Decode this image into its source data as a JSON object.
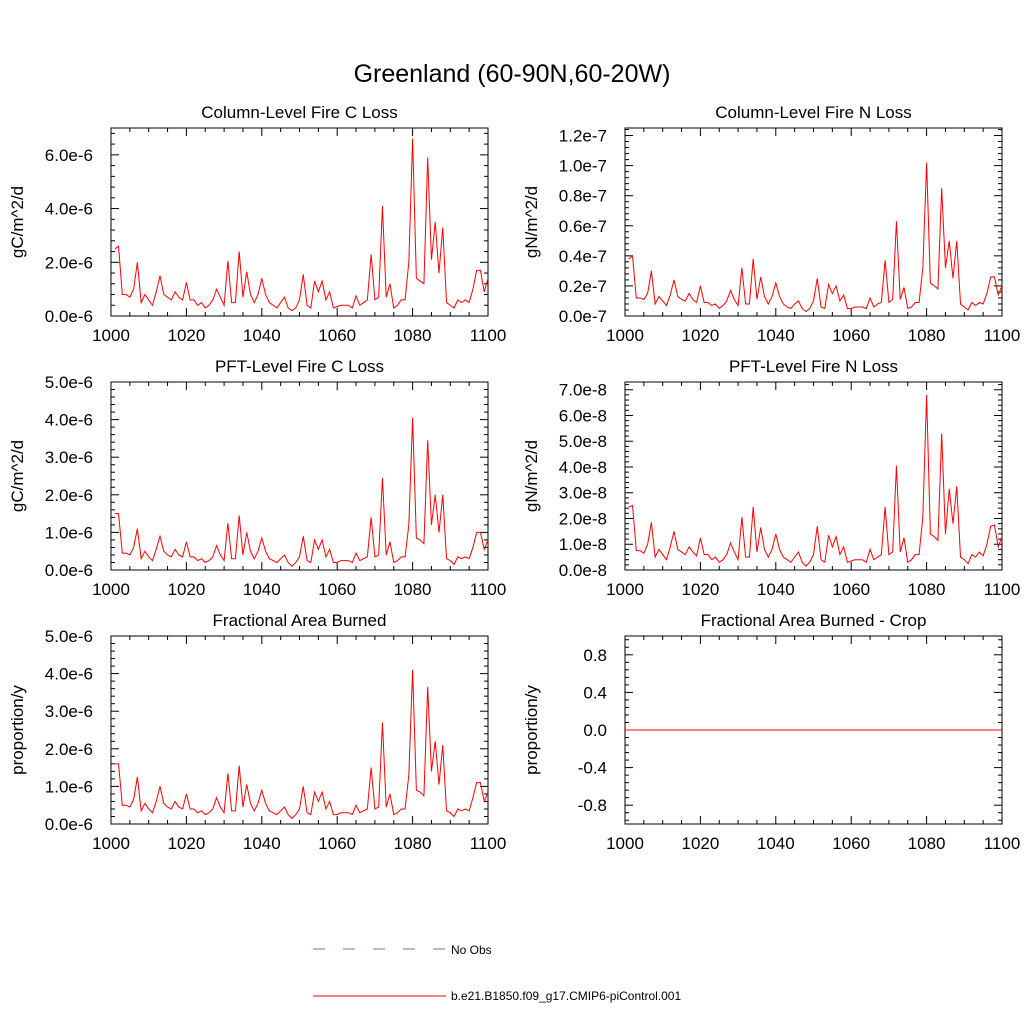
{
  "title": "Greenland (60-90N,60-20W)",
  "legend": [
    {
      "label": "No Obs",
      "style": "dashed",
      "color": "#6677bb"
    },
    {
      "label": "b.e21.B1850.f09_g17.CMIP6-piControl.001",
      "style": "solid",
      "color": "#ff0000"
    }
  ],
  "colors": {
    "series": "#ff0000",
    "axis": "#000000"
  },
  "chart_data": [
    {
      "type": "line",
      "title": "Column-Level Fire C Loss",
      "ylabel": "gC/m^2/d",
      "xlim": [
        1000,
        1100
      ],
      "ylim": [
        0,
        7e-06
      ],
      "xticks": [
        1000,
        1020,
        1040,
        1060,
        1080,
        1100
      ],
      "yticks": [
        0,
        2e-06,
        4e-06,
        6e-06
      ],
      "ytick_labels": [
        "0.0e-6",
        "2.0e-6",
        "4.0e-6",
        "6.0e-6"
      ],
      "x_start": 1001,
      "values": [
        2.5e-06,
        2.6e-06,
        8e-07,
        8e-07,
        7e-07,
        1e-06,
        2e-06,
        5e-07,
        8e-07,
        6e-07,
        4e-07,
        9e-07,
        1.5e-06,
        8e-07,
        7e-07,
        6e-07,
        9e-07,
        7e-07,
        6e-07,
        1.25e-06,
        6e-07,
        6e-07,
        4e-07,
        5e-07,
        3e-07,
        4e-07,
        6e-07,
        1e-06,
        7e-07,
        4e-07,
        2.05e-06,
        5e-07,
        5e-07,
        2.4e-06,
        7e-07,
        1.65e-06,
        8e-07,
        5e-07,
        8e-07,
        1.4e-06,
        8e-07,
        5e-07,
        4e-07,
        3e-07,
        5e-07,
        7e-07,
        3e-07,
        2e-07,
        3e-07,
        6e-07,
        1.55e-06,
        4e-07,
        3e-07,
        1.3e-06,
        9e-07,
        1.3e-06,
        6e-07,
        9e-07,
        3e-07,
        3.5e-07,
        4e-07,
        4e-07,
        4e-07,
        3e-07,
        7.5e-07,
        4e-07,
        5e-07,
        6e-07,
        2.3e-06,
        6e-07,
        7e-07,
        4.1e-06,
        7e-07,
        1.2e-06,
        3e-07,
        4e-07,
        6e-07,
        6e-07,
        2e-06,
        6.6e-06,
        1.4e-06,
        1.3e-06,
        1.2e-06,
        5.9e-06,
        2.1e-06,
        3.5e-06,
        1.6e-06,
        3.3e-06,
        5e-07,
        4e-07,
        3e-07,
        6e-07,
        5e-07,
        6e-07,
        5e-07,
        1e-06,
        1.7e-06,
        1.7e-06,
        9e-07,
        1.4e-06
      ]
    },
    {
      "type": "line",
      "title": "Column-Level Fire N Loss",
      "ylabel": "gN/m^2/d",
      "xlim": [
        1000,
        1100
      ],
      "ylim": [
        0,
        1.25e-07
      ],
      "xticks": [
        1000,
        1020,
        1040,
        1060,
        1080,
        1100
      ],
      "yticks": [
        0,
        2e-08,
        4e-08,
        6e-08,
        8e-08,
        1e-07,
        1.2e-07
      ],
      "ytick_labels": [
        "0.0e-7",
        "0.2e-7",
        "0.4e-7",
        "0.6e-7",
        "0.8e-7",
        "1.0e-7",
        "1.2e-7"
      ],
      "x_start": 1001,
      "values": [
        3.8e-08,
        4e-08,
        1.2e-08,
        1.2e-08,
        1.1e-08,
        1.5e-08,
        3e-08,
        8e-09,
        1.3e-08,
        1e-08,
        7e-09,
        1.4e-08,
        2.4e-08,
        1.3e-08,
        1.1e-08,
        1e-08,
        1.5e-08,
        1.1e-08,
        9e-09,
        2e-08,
        9e-09,
        9e-09,
        7e-09,
        8e-09,
        5e-09,
        7e-09,
        1e-08,
        1.7e-08,
        1.1e-08,
        7e-09,
        3.2e-08,
        8e-09,
        8e-09,
        3.8e-08,
        1.1e-08,
        2.6e-08,
        1.3e-08,
        8e-09,
        1.3e-08,
        2.2e-08,
        1.3e-08,
        8e-09,
        6e-09,
        5e-09,
        8e-09,
        1e-08,
        5e-09,
        3e-09,
        5e-09,
        1e-08,
        2.5e-08,
        6e-09,
        5e-09,
        2.1e-08,
        1.5e-08,
        2e-08,
        1e-08,
        1.4e-08,
        5e-09,
        5e-09,
        6e-09,
        6e-09,
        6e-09,
        5e-09,
        1.2e-08,
        6e-09,
        8e-09,
        9e-09,
        3.7e-08,
        9e-09,
        1.1e-08,
        6.3e-08,
        1.1e-08,
        1.9e-08,
        5e-09,
        6e-09,
        9e-09,
        9e-09,
        3.2e-08,
        1.02e-07,
        2.2e-08,
        2e-08,
        1.8e-08,
        8.5e-08,
        3.2e-08,
        5e-08,
        2.5e-08,
        5e-08,
        8e-09,
        6e-09,
        4e-09,
        9e-09,
        7e-09,
        9e-09,
        8e-09,
        1.5e-08,
        2.6e-08,
        2.6e-08,
        1.4e-08,
        2e-08
      ]
    },
    {
      "type": "line",
      "title": "PFT-Level Fire C Loss",
      "ylabel": "gC/m^2/d",
      "xlim": [
        1000,
        1100
      ],
      "ylim": [
        0,
        5e-06
      ],
      "xticks": [
        1000,
        1020,
        1040,
        1060,
        1080,
        1100
      ],
      "yticks": [
        0,
        1e-06,
        2e-06,
        3e-06,
        4e-06,
        5e-06
      ],
      "ytick_labels": [
        "0.0e-6",
        "1.0e-6",
        "2.0e-6",
        "3.0e-6",
        "4.0e-6",
        "5.0e-6"
      ],
      "x_start": 1001,
      "values": [
        1.5e-06,
        1.5e-06,
        4.5e-07,
        4.5e-07,
        4e-07,
        6e-07,
        1.1e-06,
        3e-07,
        5e-07,
        3.5e-07,
        2.5e-07,
        5.5e-07,
        9e-07,
        5e-07,
        4e-07,
        3.5e-07,
        5.5e-07,
        4e-07,
        3.5e-07,
        7.5e-07,
        3.5e-07,
        3.5e-07,
        2.5e-07,
        3e-07,
        2e-07,
        2.5e-07,
        3.5e-07,
        6.5e-07,
        4e-07,
        2.5e-07,
        1.25e-06,
        3e-07,
        3e-07,
        1.45e-06,
        4e-07,
        1e-06,
        5e-07,
        3e-07,
        5e-07,
        8.5e-07,
        5e-07,
        3e-07,
        2.5e-07,
        2e-07,
        3e-07,
        4e-07,
        2e-07,
        1e-07,
        2e-07,
        3.5e-07,
        9e-07,
        2.5e-07,
        2e-07,
        8e-07,
        5.5e-07,
        8e-07,
        3.5e-07,
        5.5e-07,
        2e-07,
        2e-07,
        2.5e-07,
        2.5e-07,
        2.5e-07,
        2e-07,
        4.5e-07,
        2.5e-07,
        3e-07,
        3.5e-07,
        1.4e-06,
        3.5e-07,
        4e-07,
        2.45e-06,
        4e-07,
        7.5e-07,
        2e-07,
        2.5e-07,
        3.5e-07,
        3.5e-07,
        1.2e-06,
        4.05e-06,
        8.5e-07,
        8e-07,
        7e-07,
        3.45e-06,
        1.2e-06,
        2e-06,
        1e-06,
        2e-06,
        3e-07,
        2.5e-07,
        1.5e-07,
        3.5e-07,
        3e-07,
        3.5e-07,
        3e-07,
        6e-07,
        1e-06,
        1e-06,
        5.5e-07,
        8e-07
      ]
    },
    {
      "type": "line",
      "title": "PFT-Level Fire N Loss",
      "ylabel": "gN/m^2/d",
      "xlim": [
        1000,
        1100
      ],
      "ylim": [
        0,
        7.3e-08
      ],
      "xticks": [
        1000,
        1020,
        1040,
        1060,
        1080,
        1100
      ],
      "yticks": [
        0,
        1e-08,
        2e-08,
        3e-08,
        4e-08,
        5e-08,
        6e-08,
        7e-08
      ],
      "ytick_labels": [
        "0.0e-8",
        "1.0e-8",
        "2.0e-8",
        "3.0e-8",
        "4.0e-8",
        "5.0e-8",
        "6.0e-8",
        "7.0e-8"
      ],
      "x_start": 1001,
      "values": [
        2.45e-08,
        2.5e-08,
        7.5e-09,
        7.5e-09,
        6.5e-09,
        1e-08,
        1.85e-08,
        5e-09,
        8e-09,
        6e-09,
        4e-09,
        9e-09,
        1.5e-08,
        8e-09,
        7e-09,
        6e-09,
        9e-09,
        7e-09,
        5.5e-09,
        1.25e-08,
        6e-09,
        6e-09,
        4e-09,
        5e-09,
        3e-09,
        4e-09,
        6e-09,
        1.05e-08,
        7e-09,
        4e-09,
        2.05e-08,
        5e-09,
        5e-09,
        2.45e-08,
        7e-09,
        1.65e-08,
        8e-09,
        5e-09,
        8e-09,
        1.4e-08,
        8e-09,
        5e-09,
        4e-09,
        3e-09,
        5e-09,
        7e-09,
        3e-09,
        1.5e-09,
        3e-09,
        6e-09,
        1.7e-08,
        4e-09,
        3e-09,
        1.35e-08,
        9e-09,
        1.3e-08,
        6e-09,
        9e-09,
        3e-09,
        3.5e-09,
        4e-09,
        4e-09,
        4e-09,
        3e-09,
        8e-09,
        4e-09,
        5e-09,
        6e-09,
        2.45e-08,
        6e-09,
        7e-09,
        4.05e-08,
        7e-09,
        1.25e-08,
        3e-09,
        4e-09,
        6e-09,
        6e-09,
        2.05e-08,
        6.8e-08,
        1.4e-08,
        1.3e-08,
        1.15e-08,
        5.3e-08,
        1.4e-08,
        3.15e-08,
        1.8e-08,
        3.25e-08,
        5e-09,
        4e-09,
        2.5e-09,
        6e-09,
        5e-09,
        7e-09,
        5.5e-09,
        1e-08,
        1.7e-08,
        1.75e-08,
        9e-09,
        1.3e-08
      ]
    },
    {
      "type": "line",
      "title": "Fractional Area Burned",
      "ylabel": "proportion/y",
      "xlim": [
        1000,
        1100
      ],
      "ylim": [
        0,
        5e-06
      ],
      "xticks": [
        1000,
        1020,
        1040,
        1060,
        1080,
        1100
      ],
      "yticks": [
        0,
        1e-06,
        2e-06,
        3e-06,
        4e-06,
        5e-06
      ],
      "ytick_labels": [
        "0.0e-6",
        "1.0e-6",
        "2.0e-6",
        "3.0e-6",
        "4.0e-6",
        "5.0e-6"
      ],
      "x_start": 1001,
      "values": [
        1.6e-06,
        1.6e-06,
        5e-07,
        5e-07,
        4.5e-07,
        6.5e-07,
        1.25e-06,
        3.5e-07,
        5.5e-07,
        4e-07,
        3e-07,
        6e-07,
        1e-06,
        5.5e-07,
        4.5e-07,
        4e-07,
        6e-07,
        4.5e-07,
        4e-07,
        8e-07,
        4e-07,
        4e-07,
        3e-07,
        3.5e-07,
        2.5e-07,
        3e-07,
        4e-07,
        7e-07,
        4.5e-07,
        3e-07,
        1.35e-06,
        3.5e-07,
        3.5e-07,
        1.55e-06,
        4.5e-07,
        1.05e-06,
        5.5e-07,
        3.5e-07,
        5.5e-07,
        9e-07,
        5.5e-07,
        3.5e-07,
        3e-07,
        2.5e-07,
        3.5e-07,
        4.5e-07,
        2.5e-07,
        1.5e-07,
        2.5e-07,
        4e-07,
        1e-06,
        3e-07,
        2.5e-07,
        8.5e-07,
        6e-07,
        8.5e-07,
        4e-07,
        6e-07,
        2.5e-07,
        2.5e-07,
        3e-07,
        3e-07,
        3e-07,
        2.5e-07,
        5e-07,
        3e-07,
        3.5e-07,
        4e-07,
        1.5e-06,
        4e-07,
        4.5e-07,
        2.7e-06,
        4.5e-07,
        8e-07,
        2.5e-07,
        3e-07,
        4e-07,
        4e-07,
        1.3e-06,
        4.1e-06,
        9e-07,
        8.5e-07,
        7.5e-07,
        3.65e-06,
        1.4e-06,
        2.2e-06,
        1.05e-06,
        2.1e-06,
        3.5e-07,
        3e-07,
        2e-07,
        4e-07,
        3.5e-07,
        4e-07,
        3.5e-07,
        7e-07,
        1.1e-06,
        1.1e-06,
        6e-07,
        8.5e-07
      ]
    },
    {
      "type": "line",
      "title": "Fractional Area Burned - Crop",
      "ylabel": "proportion/y",
      "xlim": [
        1000,
        1100
      ],
      "ylim": [
        -1.0,
        1.0
      ],
      "xticks": [
        1000,
        1020,
        1040,
        1060,
        1080,
        1100
      ],
      "yticks": [
        -0.8,
        -0.4,
        0.0,
        0.4,
        0.8
      ],
      "ytick_labels": [
        "-0.8",
        "-0.4",
        "0.0",
        "0.4",
        "0.8"
      ],
      "x_start": 1000,
      "values": [
        0,
        0
      ]
    }
  ]
}
